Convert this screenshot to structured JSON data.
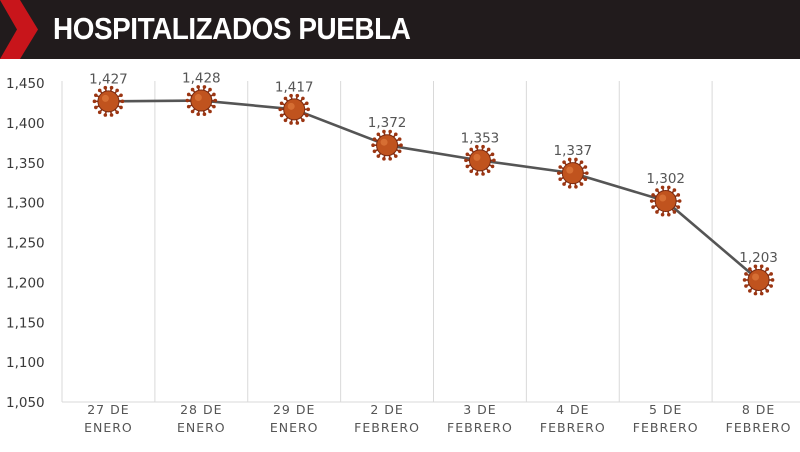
{
  "header": {
    "title": "HOSPITALIZADOS PUEBLA"
  },
  "colors": {
    "banner": "#211b1c",
    "chevron": "#c8151b",
    "line": "#555555",
    "marker": "#c0531e",
    "grid": "#d9d9d9"
  },
  "chart_data": {
    "type": "line",
    "title": "HOSPITALIZADOS PUEBLA",
    "xlabel": "",
    "ylabel": "",
    "ylim": [
      1050,
      1450
    ],
    "yticks": [
      1050,
      1100,
      1150,
      1200,
      1250,
      1300,
      1350,
      1400,
      1450
    ],
    "ytick_labels": [
      "1,050",
      "1,100",
      "1,150",
      "1,200",
      "1,250",
      "1,300",
      "1,350",
      "1,400",
      "1,450"
    ],
    "categories": [
      [
        "27 DE",
        "ENERO"
      ],
      [
        "28 DE",
        "ENERO"
      ],
      [
        "29 DE",
        "ENERO"
      ],
      [
        "2 DE",
        "FEBRERO"
      ],
      [
        "3 DE",
        "FEBRERO"
      ],
      [
        "4 DE",
        "FEBRERO"
      ],
      [
        "5 DE",
        "FEBRERO"
      ],
      [
        "8 DE",
        "FEBRERO"
      ]
    ],
    "values": [
      1427,
      1428,
      1417,
      1372,
      1353,
      1337,
      1302,
      1203
    ],
    "value_labels": [
      "1,427",
      "1,428",
      "1,417",
      "1,372",
      "1,353",
      "1,337",
      "1,302",
      "1,203"
    ],
    "marker_icon": "virus-icon",
    "grid": "vertical"
  }
}
